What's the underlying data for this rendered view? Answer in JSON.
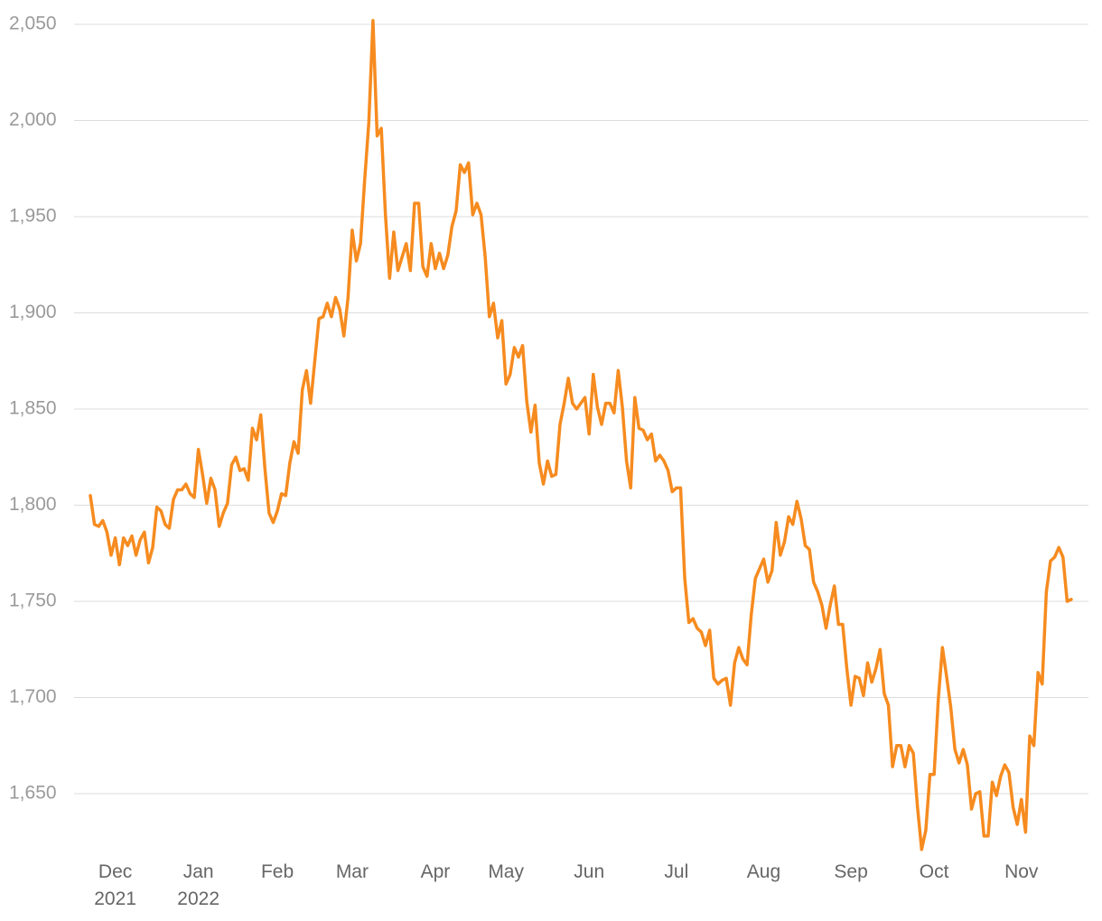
{
  "chart_data": {
    "type": "line",
    "categories": [
      null,
      null,
      null,
      null,
      null,
      null,
      "Dec 2021",
      null,
      null,
      null,
      null,
      null,
      null,
      null,
      null,
      null,
      null,
      null,
      null,
      null,
      null,
      null,
      null,
      null,
      null,
      null,
      "Jan 2022",
      null,
      null,
      null,
      null,
      null,
      null,
      null,
      null,
      null,
      null,
      null,
      null,
      null,
      null,
      null,
      null,
      null,
      null,
      "Feb",
      null,
      null,
      null,
      null,
      null,
      null,
      null,
      null,
      null,
      null,
      null,
      null,
      null,
      null,
      null,
      null,
      null,
      "Mar",
      null,
      null,
      null,
      null,
      null,
      null,
      null,
      null,
      null,
      null,
      null,
      null,
      null,
      null,
      null,
      null,
      null,
      null,
      null,
      "Apr",
      null,
      null,
      null,
      null,
      null,
      null,
      null,
      null,
      null,
      null,
      null,
      null,
      null,
      null,
      null,
      null,
      "May",
      null,
      null,
      null,
      null,
      null,
      null,
      null,
      null,
      null,
      null,
      null,
      null,
      null,
      null,
      null,
      null,
      null,
      null,
      null,
      "Jun",
      null,
      null,
      null,
      null,
      null,
      null,
      null,
      null,
      null,
      null,
      null,
      null,
      null,
      null,
      null,
      null,
      null,
      null,
      null,
      null,
      "Jul",
      null,
      null,
      null,
      null,
      null,
      null,
      null,
      null,
      null,
      null,
      null,
      null,
      null,
      null,
      null,
      null,
      null,
      null,
      null,
      null,
      "Aug",
      null,
      null,
      null,
      null,
      null,
      null,
      null,
      null,
      null,
      null,
      null,
      null,
      null,
      null,
      null,
      null,
      null,
      null,
      null,
      null,
      "Sep",
      null,
      null,
      null,
      null,
      null,
      null,
      null,
      null,
      null,
      null,
      null,
      null,
      null,
      null,
      null,
      null,
      null,
      null,
      null,
      "Oct",
      null,
      null,
      null,
      null,
      null,
      null,
      null,
      null,
      null,
      null,
      null,
      null,
      null,
      null,
      null,
      null,
      null,
      null,
      null,
      null,
      "Nov",
      null,
      null,
      null,
      null,
      null,
      null,
      null,
      null,
      null,
      null,
      null,
      null
    ],
    "values": [
      1805,
      1790,
      1789,
      1792,
      1786,
      1774,
      1783,
      1769,
      1783,
      1779,
      1784,
      1774,
      1782,
      1786,
      1770,
      1778,
      1799,
      1797,
      1790,
      1788,
      1803,
      1808,
      1808,
      1811,
      1806,
      1804,
      1829,
      1816,
      1801,
      1814,
      1808,
      1789,
      1796,
      1801,
      1821,
      1825,
      1818,
      1819,
      1813,
      1840,
      1834,
      1847,
      1819,
      1796,
      1791,
      1797,
      1806,
      1805,
      1822,
      1833,
      1827,
      1860,
      1870,
      1853,
      1875,
      1897,
      1898,
      1905,
      1898,
      1908,
      1902,
      1888,
      1908,
      1943,
      1927,
      1936,
      1969,
      1999,
      2052,
      1992,
      1996,
      1951,
      1918,
      1942,
      1922,
      1929,
      1936,
      1922,
      1957,
      1957,
      1924,
      1919,
      1936,
      1923,
      1931,
      1923,
      1930,
      1945,
      1953,
      1977,
      1973,
      1978,
      1951,
      1957,
      1951,
      1929,
      1898,
      1905,
      1887,
      1896,
      1863,
      1868,
      1882,
      1877,
      1883,
      1854,
      1838,
      1852,
      1822,
      1811,
      1823,
      1815,
      1816,
      1842,
      1853,
      1866,
      1853,
      1850,
      1853,
      1856,
      1837,
      1868,
      1851,
      1842,
      1853,
      1853,
      1848,
      1870,
      1851,
      1823,
      1809,
      1856,
      1840,
      1839,
      1834,
      1837,
      1823,
      1826,
      1823,
      1818,
      1807,
      1809,
      1809,
      1762,
      1739,
      1741,
      1736,
      1734,
      1727,
      1735,
      1710,
      1707,
      1709,
      1710,
      1696,
      1718,
      1726,
      1720,
      1717,
      1743,
      1762,
      1767,
      1772,
      1760,
      1766,
      1791,
      1774,
      1781,
      1794,
      1790,
      1802,
      1793,
      1779,
      1777,
      1760,
      1755,
      1748,
      1736,
      1748,
      1758,
      1738,
      1738,
      1715,
      1696,
      1711,
      1710,
      1701,
      1718,
      1708,
      1715,
      1725,
      1702,
      1696,
      1664,
      1675,
      1675,
      1664,
      1675,
      1671,
      1643,
      1621,
      1631,
      1660,
      1660,
      1699,
      1726,
      1711,
      1695,
      1673,
      1666,
      1673,
      1665,
      1642,
      1650,
      1651,
      1628,
      1628,
      1656,
      1649,
      1659,
      1665,
      1661,
      1643,
      1634,
      1647,
      1630,
      1680,
      1675,
      1713,
      1707,
      1755,
      1771,
      1773,
      1778,
      1773,
      1750,
      1751
    ],
    "color": "#f68b1f",
    "ylim": [
      1620,
      2060
    ],
    "yticks": [
      {
        "value": 1650,
        "label": "1,650"
      },
      {
        "value": 1700,
        "label": "1,700"
      },
      {
        "value": 1750,
        "label": "1,750"
      },
      {
        "value": 1800,
        "label": "1,800"
      },
      {
        "value": 1850,
        "label": "1,850"
      },
      {
        "value": 1900,
        "label": "1,900"
      },
      {
        "value": 1950,
        "label": "1,950"
      },
      {
        "value": 2000,
        "label": "2,000"
      },
      {
        "value": 2050,
        "label": "2,050"
      }
    ],
    "grid": true
  }
}
